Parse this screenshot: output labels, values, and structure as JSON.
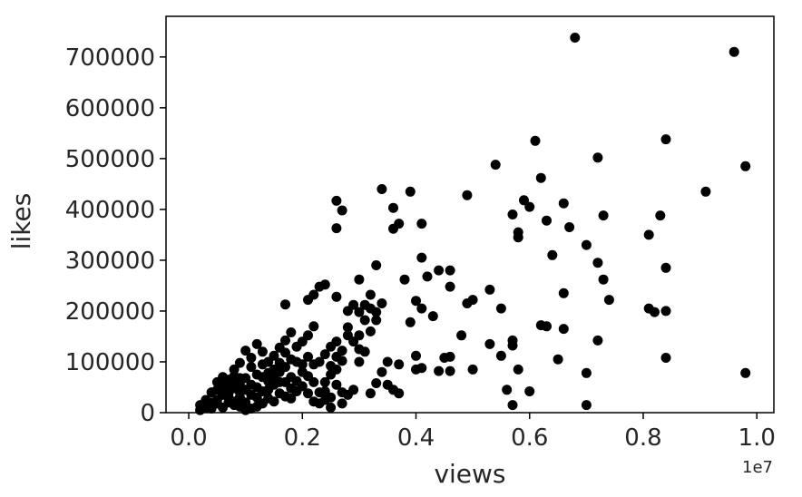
{
  "chart_data": {
    "type": "scatter",
    "title": "",
    "xlabel": "views",
    "ylabel": "likes",
    "x_offset_label": "1e7",
    "xlim": [
      -0.04,
      1.03
    ],
    "ylim": [
      0,
      780000
    ],
    "xticks": [
      0.0,
      0.2,
      0.4,
      0.6,
      0.8,
      1.0
    ],
    "xtick_labels": [
      "0.0",
      "0.2",
      "0.4",
      "0.6",
      "0.8",
      "1.0"
    ],
    "yticks": [
      0,
      100000,
      200000,
      300000,
      400000,
      500000,
      600000,
      700000
    ],
    "ytick_labels": [
      "0",
      "100000",
      "200000",
      "300000",
      "400000",
      "500000",
      "600000",
      "700000"
    ],
    "grid": false,
    "marker_color": "#000000",
    "points": [
      [
        0.68,
        738000
      ],
      [
        0.96,
        710000
      ],
      [
        0.61,
        535000
      ],
      [
        0.84,
        538000
      ],
      [
        0.54,
        488000
      ],
      [
        0.72,
        502000
      ],
      [
        0.98,
        485000
      ],
      [
        0.62,
        462000
      ],
      [
        0.91,
        435000
      ],
      [
        0.34,
        440000
      ],
      [
        0.39,
        435000
      ],
      [
        0.49,
        428000
      ],
      [
        0.26,
        417000
      ],
      [
        0.27,
        398000
      ],
      [
        0.26,
        363000
      ],
      [
        0.36,
        403000
      ],
      [
        0.37,
        372000
      ],
      [
        0.36,
        362000
      ],
      [
        0.41,
        372000
      ],
      [
        0.59,
        418000
      ],
      [
        0.6,
        405000
      ],
      [
        0.57,
        390000
      ],
      [
        0.58,
        355000
      ],
      [
        0.58,
        345000
      ],
      [
        0.63,
        378000
      ],
      [
        0.66,
        412000
      ],
      [
        0.67,
        365000
      ],
      [
        0.7,
        330000
      ],
      [
        0.73,
        388000
      ],
      [
        0.83,
        388000
      ],
      [
        0.81,
        350000
      ],
      [
        0.64,
        310000
      ],
      [
        0.72,
        295000
      ],
      [
        0.73,
        262000
      ],
      [
        0.74,
        222000
      ],
      [
        0.66,
        235000
      ],
      [
        0.84,
        285000
      ],
      [
        0.81,
        205000
      ],
      [
        0.82,
        198000
      ],
      [
        0.84,
        200000
      ],
      [
        0.33,
        290000
      ],
      [
        0.41,
        305000
      ],
      [
        0.44,
        280000
      ],
      [
        0.46,
        280000
      ],
      [
        0.46,
        248000
      ],
      [
        0.42,
        268000
      ],
      [
        0.38,
        262000
      ],
      [
        0.53,
        242000
      ],
      [
        0.5,
        222000
      ],
      [
        0.49,
        215000
      ],
      [
        0.55,
        205000
      ],
      [
        0.4,
        220000
      ],
      [
        0.41,
        205000
      ],
      [
        0.43,
        190000
      ],
      [
        0.39,
        178000
      ],
      [
        0.62,
        172000
      ],
      [
        0.63,
        170000
      ],
      [
        0.66,
        165000
      ],
      [
        0.72,
        142000
      ],
      [
        0.57,
        142000
      ],
      [
        0.57,
        132000
      ],
      [
        0.53,
        135000
      ],
      [
        0.55,
        112000
      ],
      [
        0.48,
        152000
      ],
      [
        0.46,
        110000
      ],
      [
        0.45,
        108000
      ],
      [
        0.44,
        82000
      ],
      [
        0.46,
        82000
      ],
      [
        0.5,
        85000
      ],
      [
        0.58,
        85000
      ],
      [
        0.4,
        112000
      ],
      [
        0.37,
        95000
      ],
      [
        0.4,
        85000
      ],
      [
        0.41,
        88000
      ],
      [
        0.36,
        45000
      ],
      [
        0.35,
        55000
      ],
      [
        0.37,
        38000
      ],
      [
        0.56,
        45000
      ],
      [
        0.57,
        15000
      ],
      [
        0.6,
        42000
      ],
      [
        0.65,
        105000
      ],
      [
        0.7,
        78000
      ],
      [
        0.7,
        15000
      ],
      [
        0.84,
        108000
      ],
      [
        0.98,
        78000
      ],
      [
        0.3,
        262000
      ],
      [
        0.32,
        232000
      ],
      [
        0.29,
        212000
      ],
      [
        0.31,
        212000
      ],
      [
        0.3,
        198000
      ],
      [
        0.28,
        200000
      ],
      [
        0.26,
        228000
      ],
      [
        0.24,
        252000
      ],
      [
        0.23,
        248000
      ],
      [
        0.22,
        232000
      ],
      [
        0.21,
        222000
      ],
      [
        0.17,
        213000
      ],
      [
        0.34,
        215000
      ],
      [
        0.33,
        198000
      ],
      [
        0.32,
        205000
      ],
      [
        0.33,
        182000
      ],
      [
        0.31,
        182000
      ],
      [
        0.32,
        160000
      ],
      [
        0.3,
        152000
      ],
      [
        0.28,
        168000
      ],
      [
        0.28,
        152000
      ],
      [
        0.26,
        140000
      ],
      [
        0.25,
        130000
      ],
      [
        0.27,
        122000
      ],
      [
        0.24,
        115000
      ],
      [
        0.23,
        100000
      ],
      [
        0.25,
        92000
      ],
      [
        0.26,
        85000
      ],
      [
        0.22,
        170000
      ],
      [
        0.21,
        152000
      ],
      [
        0.2,
        140000
      ],
      [
        0.19,
        130000
      ],
      [
        0.18,
        158000
      ],
      [
        0.17,
        142000
      ],
      [
        0.16,
        128000
      ],
      [
        0.15,
        112000
      ],
      [
        0.14,
        100000
      ],
      [
        0.13,
        120000
      ],
      [
        0.12,
        135000
      ],
      [
        0.11,
        108000
      ],
      [
        0.1,
        122000
      ],
      [
        0.09,
        98000
      ],
      [
        0.08,
        85000
      ],
      [
        0.07,
        65000
      ],
      [
        0.06,
        55000
      ],
      [
        0.05,
        45000
      ],
      [
        0.04,
        40000
      ],
      [
        0.04,
        20000
      ],
      [
        0.03,
        10000
      ],
      [
        0.02,
        15000
      ],
      [
        0.05,
        25000
      ],
      [
        0.06,
        10000
      ],
      [
        0.07,
        30000
      ],
      [
        0.08,
        15000
      ],
      [
        0.09,
        40000
      ],
      [
        0.1,
        20000
      ],
      [
        0.11,
        55000
      ],
      [
        0.12,
        30000
      ],
      [
        0.13,
        70000
      ],
      [
        0.14,
        45000
      ],
      [
        0.15,
        85000
      ],
      [
        0.16,
        60000
      ],
      [
        0.17,
        90000
      ],
      [
        0.18,
        70000
      ],
      [
        0.19,
        100000
      ],
      [
        0.2,
        80000
      ],
      [
        0.21,
        110000
      ],
      [
        0.22,
        60000
      ],
      [
        0.23,
        40000
      ],
      [
        0.24,
        25000
      ],
      [
        0.25,
        30000
      ],
      [
        0.26,
        55000
      ],
      [
        0.27,
        40000
      ],
      [
        0.28,
        35000
      ],
      [
        0.29,
        45000
      ],
      [
        0.3,
        100000
      ],
      [
        0.31,
        120000
      ],
      [
        0.32,
        38000
      ],
      [
        0.33,
        58000
      ],
      [
        0.34,
        80000
      ],
      [
        0.35,
        100000
      ],
      [
        0.3,
        125000
      ],
      [
        0.29,
        140000
      ],
      [
        0.27,
        102000
      ],
      [
        0.26,
        110000
      ],
      [
        0.25,
        75000
      ],
      [
        0.24,
        60000
      ],
      [
        0.22,
        95000
      ],
      [
        0.21,
        72000
      ],
      [
        0.2,
        52000
      ],
      [
        0.19,
        42000
      ],
      [
        0.18,
        28000
      ],
      [
        0.17,
        32000
      ],
      [
        0.16,
        38000
      ],
      [
        0.15,
        22000
      ],
      [
        0.14,
        28000
      ],
      [
        0.13,
        18000
      ],
      [
        0.12,
        12000
      ],
      [
        0.11,
        8000
      ],
      [
        0.1,
        5000
      ],
      [
        0.09,
        12000
      ],
      [
        0.08,
        22000
      ],
      [
        0.07,
        48000
      ],
      [
        0.06,
        35000
      ],
      [
        0.05,
        18000
      ],
      [
        0.04,
        8000
      ],
      [
        0.03,
        25000
      ],
      [
        0.02,
        5000
      ],
      [
        0.12,
        75000
      ],
      [
        0.11,
        90000
      ],
      [
        0.1,
        68000
      ],
      [
        0.09,
        55000
      ],
      [
        0.08,
        72000
      ],
      [
        0.13,
        95000
      ],
      [
        0.14,
        78000
      ],
      [
        0.15,
        55000
      ],
      [
        0.16,
        98000
      ],
      [
        0.17,
        118000
      ],
      [
        0.18,
        105000
      ],
      [
        0.1,
        45000
      ],
      [
        0.09,
        30000
      ],
      [
        0.08,
        48000
      ],
      [
        0.07,
        20000
      ],
      [
        0.06,
        70000
      ],
      [
        0.05,
        60000
      ],
      [
        0.06,
        42000
      ],
      [
        0.07,
        38000
      ],
      [
        0.08,
        58000
      ],
      [
        0.09,
        68000
      ],
      [
        0.11,
        35000
      ],
      [
        0.12,
        50000
      ],
      [
        0.13,
        42000
      ],
      [
        0.14,
        62000
      ],
      [
        0.15,
        72000
      ],
      [
        0.16,
        80000
      ],
      [
        0.17,
        60000
      ],
      [
        0.18,
        48000
      ],
      [
        0.19,
        62000
      ],
      [
        0.2,
        95000
      ],
      [
        0.21,
        38000
      ],
      [
        0.22,
        22000
      ],
      [
        0.23,
        18000
      ],
      [
        0.24,
        42000
      ],
      [
        0.25,
        10000
      ],
      [
        0.27,
        18000
      ]
    ]
  }
}
